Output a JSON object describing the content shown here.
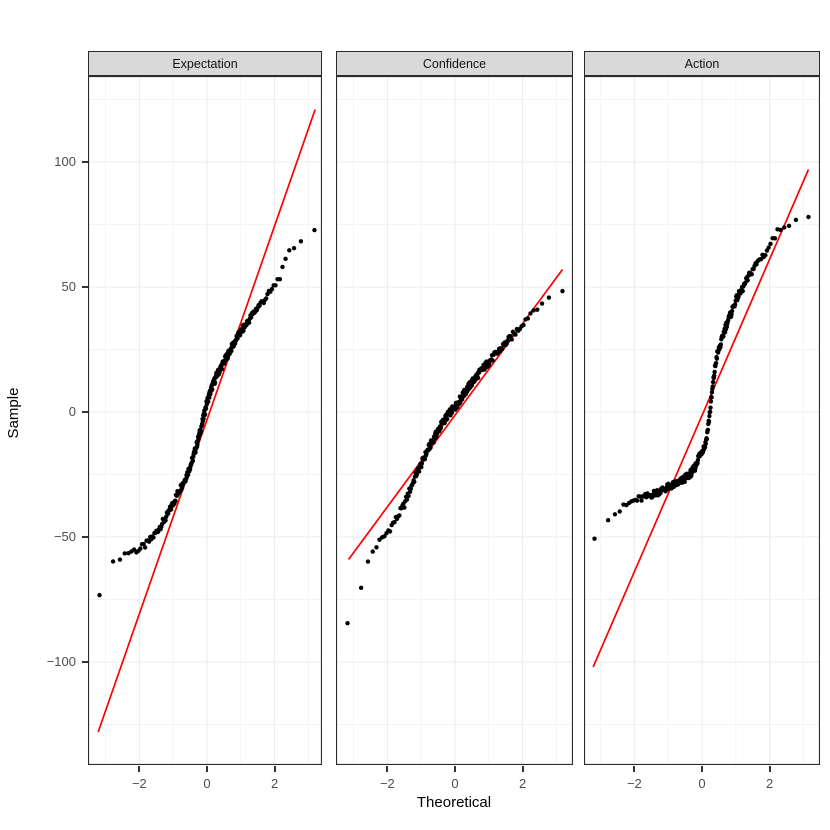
{
  "figure": {
    "kind": "faceted QQ plot (ggplot2 theme_bw style)",
    "background": "#FFFFFF"
  },
  "colors": {
    "point": "#000000",
    "qq_line": "#FF0000",
    "strip_bg": "#D9D9D9",
    "strip_border": "#2B2B2B",
    "panel_border": "#2B2B2B",
    "grid_major": "#EBEBEB",
    "grid_minor": "#F4F4F4",
    "tick_text": "#4D4D4D",
    "tick_mark": "#333333",
    "axis_title_text": "#000000"
  },
  "chart_data": {
    "type": "scatter",
    "subtype": "qq-plot",
    "title": "",
    "xlabel": "Theoretical",
    "ylabel": "Sample",
    "legend": "none",
    "grid": "on",
    "x_tick_labels": [
      "−2",
      "0",
      "2"
    ],
    "x_tick_values": [
      -2,
      0,
      2
    ],
    "x_minor_gridlines": [
      -3,
      -1,
      1,
      3
    ],
    "y_tick_labels": [
      "100",
      "50",
      "0",
      "−50",
      "−100"
    ],
    "y_tick_values": [
      100,
      50,
      0,
      -50,
      -100
    ],
    "y_minor_gridlines": [
      125,
      75,
      25,
      -25,
      -75,
      -125
    ],
    "xlim": [
      -3.52,
      3.45
    ],
    "ylim": [
      -141,
      134
    ],
    "n_points_per_facet": 260,
    "facets": [
      {
        "facet": "Expectation",
        "qq_line": {
          "x": [
            -3.22,
            3.2
          ],
          "y": [
            -128,
            121
          ]
        },
        "curve_points": [
          [
            -3.2,
            -74
          ],
          [
            -2.9,
            -63
          ],
          [
            -2.8,
            -60
          ],
          [
            -2.6,
            -58
          ],
          [
            -2.4,
            -56.5
          ],
          [
            -2.2,
            -55.5
          ],
          [
            -2.0,
            -55
          ],
          [
            -1.8,
            -53
          ],
          [
            -1.6,
            -50
          ],
          [
            -1.4,
            -46
          ],
          [
            -1.2,
            -42
          ],
          [
            -1.0,
            -36.5
          ],
          [
            -0.85,
            -32
          ],
          [
            -0.65,
            -27
          ],
          [
            -0.45,
            -20
          ],
          [
            -0.3,
            -13
          ],
          [
            -0.15,
            -5
          ],
          [
            0,
            4
          ],
          [
            0.15,
            10
          ],
          [
            0.3,
            15
          ],
          [
            0.5,
            20
          ],
          [
            0.7,
            25
          ],
          [
            0.9,
            30
          ],
          [
            1.1,
            34
          ],
          [
            1.3,
            38
          ],
          [
            1.5,
            42
          ],
          [
            1.7,
            45
          ],
          [
            1.85,
            47.5
          ],
          [
            2.0,
            50.5
          ],
          [
            2.1,
            53
          ],
          [
            2.2,
            55.5
          ],
          [
            2.3,
            59
          ],
          [
            2.4,
            63
          ],
          [
            2.5,
            65
          ],
          [
            2.7,
            67.5
          ],
          [
            2.85,
            69
          ],
          [
            3.2,
            73
          ]
        ]
      },
      {
        "facet": "Confidence",
        "qq_line": {
          "x": [
            -3.15,
            3.18
          ],
          "y": [
            -59,
            57
          ]
        },
        "curve_points": [
          [
            -3.2,
            -85
          ],
          [
            -2.9,
            -77
          ],
          [
            -2.7,
            -66
          ],
          [
            -2.6,
            -61
          ],
          [
            -2.5,
            -57
          ],
          [
            -2.3,
            -53
          ],
          [
            -2.1,
            -50
          ],
          [
            -1.9,
            -46
          ],
          [
            -1.7,
            -42
          ],
          [
            -1.5,
            -37
          ],
          [
            -1.3,
            -30
          ],
          [
            -1.15,
            -25
          ],
          [
            -1.0,
            -21
          ],
          [
            -0.8,
            -15
          ],
          [
            -0.6,
            -10
          ],
          [
            -0.4,
            -5
          ],
          [
            -0.2,
            -1
          ],
          [
            0,
            2
          ],
          [
            0.2,
            6
          ],
          [
            0.4,
            10
          ],
          [
            0.6,
            13.5
          ],
          [
            0.8,
            17
          ],
          [
            1.0,
            20
          ],
          [
            1.2,
            23
          ],
          [
            1.4,
            26
          ],
          [
            1.6,
            29
          ],
          [
            1.8,
            32
          ],
          [
            2.0,
            35.5
          ],
          [
            2.2,
            39
          ],
          [
            2.4,
            42
          ],
          [
            2.6,
            44
          ],
          [
            2.8,
            46
          ],
          [
            3.0,
            47
          ],
          [
            3.2,
            48.5
          ]
        ]
      },
      {
        "facet": "Action",
        "qq_line": {
          "x": [
            -3.22,
            3.15
          ],
          "y": [
            -102,
            97
          ]
        },
        "curve_points": [
          [
            -3.2,
            -51
          ],
          [
            -2.9,
            -46
          ],
          [
            -2.7,
            -41.5
          ],
          [
            -2.5,
            -40
          ],
          [
            -2.3,
            -38
          ],
          [
            -2.1,
            -36
          ],
          [
            -1.9,
            -35
          ],
          [
            -1.65,
            -34
          ],
          [
            -1.4,
            -32.5
          ],
          [
            -1.15,
            -31
          ],
          [
            -0.9,
            -29.5
          ],
          [
            -0.65,
            -28
          ],
          [
            -0.45,
            -26
          ],
          [
            -0.3,
            -24
          ],
          [
            -0.2,
            -22
          ],
          [
            -0.1,
            -18
          ],
          [
            0,
            -15.5
          ],
          [
            0.1,
            -13
          ],
          [
            0.15,
            -9
          ],
          [
            0.2,
            -4
          ],
          [
            0.25,
            2
          ],
          [
            0.3,
            8
          ],
          [
            0.35,
            14
          ],
          [
            0.4,
            19
          ],
          [
            0.45,
            23
          ],
          [
            0.55,
            27
          ],
          [
            0.65,
            32
          ],
          [
            0.75,
            36
          ],
          [
            0.85,
            39
          ],
          [
            0.95,
            43
          ],
          [
            1.05,
            46
          ],
          [
            1.15,
            48
          ],
          [
            1.3,
            52
          ],
          [
            1.5,
            57
          ],
          [
            1.7,
            61
          ],
          [
            1.9,
            64
          ],
          [
            2.05,
            68
          ],
          [
            2.2,
            71
          ],
          [
            2.3,
            73.5
          ],
          [
            2.5,
            75
          ],
          [
            2.8,
            77
          ],
          [
            3.15,
            78
          ]
        ]
      }
    ]
  }
}
